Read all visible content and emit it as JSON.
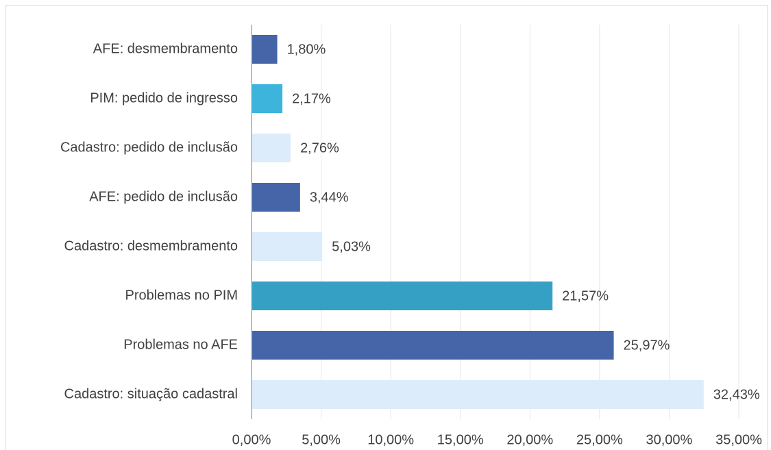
{
  "chart_data": {
    "type": "hbar",
    "categories": [
      "AFE: desmembramento",
      "PIM: pedido de ingresso",
      "Cadastro: pedido de inclusão",
      "AFE: pedido de inclusão",
      "Cadastro: desmembramento",
      "Problemas no PIM",
      "Problemas no AFE",
      "Cadastro: situação cadastral"
    ],
    "values": [
      1.8,
      2.17,
      2.76,
      3.44,
      5.03,
      21.57,
      25.97,
      32.43
    ],
    "value_labels": [
      "1,80%",
      "2,17%",
      "2,76%",
      "3,44%",
      "5,03%",
      "21,57%",
      "25,97%",
      "32,43%"
    ],
    "colors": [
      "#4565a8",
      "#3cb4dc",
      "#ddecfb",
      "#4565a8",
      "#ddecfb",
      "#35a0c4",
      "#4565a8",
      "#ddecfb"
    ],
    "xlim": [
      0,
      35
    ],
    "xticks": [
      {
        "value": 0,
        "label": "0,00%"
      },
      {
        "value": 5,
        "label": "5,00%"
      },
      {
        "value": 10,
        "label": "10,00%"
      },
      {
        "value": 15,
        "label": "15,00%"
      },
      {
        "value": 20,
        "label": "20,00%"
      },
      {
        "value": 25,
        "label": "25,00%"
      },
      {
        "value": 30,
        "label": "30,00%"
      },
      {
        "value": 35,
        "label": "35,00%"
      }
    ],
    "grid": true
  }
}
